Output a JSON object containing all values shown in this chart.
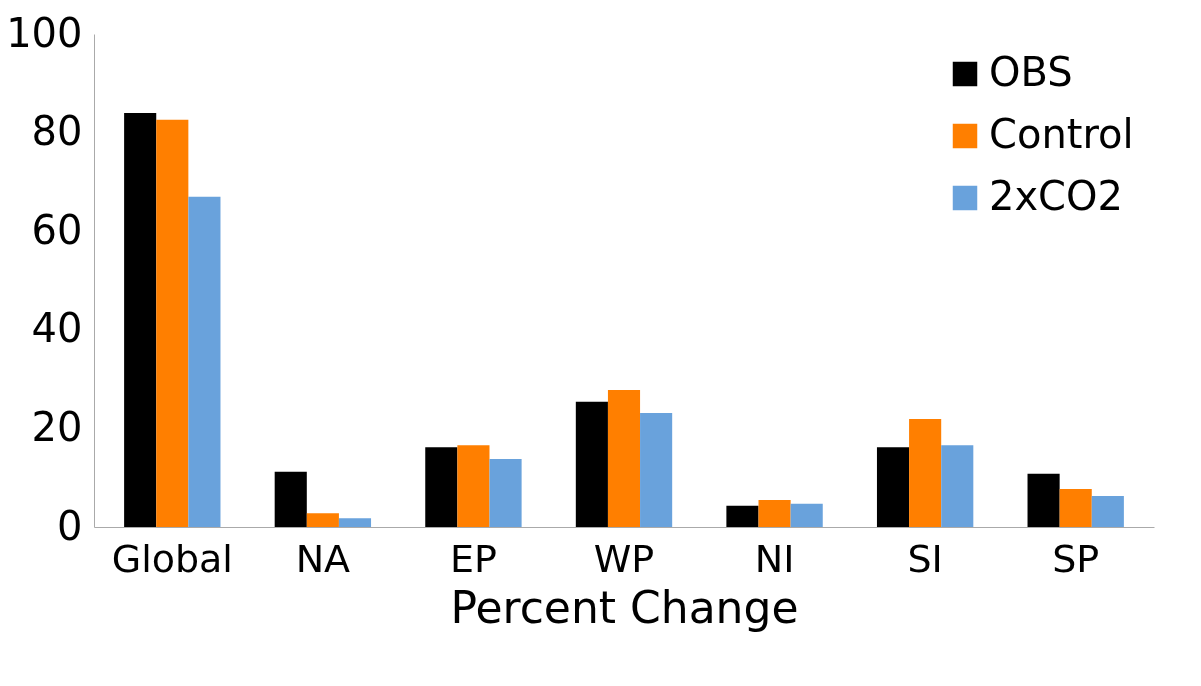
{
  "chart_data": {
    "type": "bar",
    "xlabel": "Percent Change",
    "categories": [
      "Global",
      "NA",
      "EP",
      "WP",
      "NI",
      "SI",
      "SP"
    ],
    "series": [
      {
        "name": "OBS",
        "color": "#000000",
        "values": [
          84,
          11.2,
          16.2,
          25.4,
          4.3,
          16.2,
          10.8
        ]
      },
      {
        "name": "Control",
        "color": "#ff7f00",
        "values": [
          82.6,
          2.8,
          16.6,
          27.8,
          5.5,
          21.9,
          7.7
        ]
      },
      {
        "name": "2xCO2",
        "color": "#69a2dc",
        "values": [
          67,
          1.8,
          13.8,
          23.1,
          4.7,
          16.6,
          6.3
        ]
      }
    ],
    "ylim": [
      0,
      100
    ],
    "yticks": [
      0,
      20,
      40,
      60,
      80,
      100
    ],
    "grid": false,
    "legend": "top right"
  }
}
